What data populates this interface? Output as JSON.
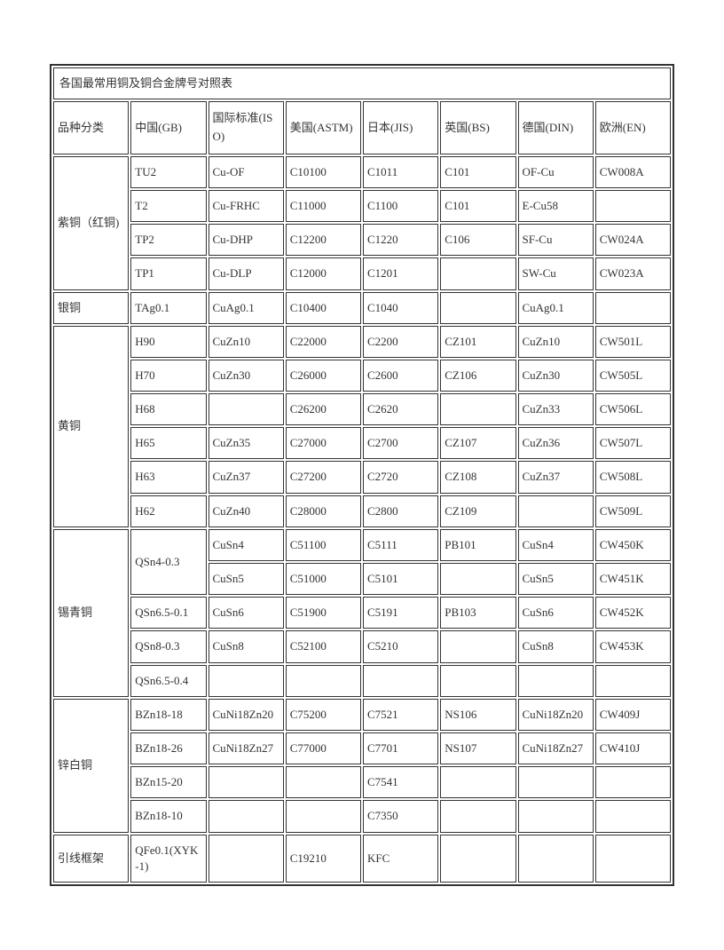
{
  "title": "各国最常用铜及铜合金牌号对照表",
  "headers": [
    "品种分类",
    "中国(GB)",
    "国际标准(ISO)",
    "美国(ASTM)",
    "日本(JIS)",
    "英国(BS)",
    "德国(DIN)",
    "欧洲(EN)"
  ],
  "sections": [
    {
      "category": "紫铜（红铜)",
      "rows": [
        [
          "TU2",
          "Cu-OF",
          "C10100",
          "C1011",
          "C101",
          "OF-Cu",
          "CW008A"
        ],
        [
          "T2",
          "Cu-FRHC",
          "C11000",
          "C1100",
          "C101",
          "E-Cu58",
          ""
        ],
        [
          "TP2",
          "Cu-DHP",
          "C12200",
          "C1220",
          "C106",
          "SF-Cu",
          "CW024A"
        ],
        [
          "TP1",
          "Cu-DLP",
          "C12000",
          "C1201",
          "",
          "SW-Cu",
          "CW023A"
        ]
      ]
    },
    {
      "category": "银铜",
      "rows": [
        [
          "TAg0.1",
          "CuAg0.1",
          "C10400",
          "C1040",
          "",
          "CuAg0.1",
          ""
        ]
      ]
    },
    {
      "category": "黄铜",
      "rows": [
        [
          "H90",
          "CuZn10",
          "C22000",
          "C2200",
          "CZ101",
          "CuZn10",
          "CW501L"
        ],
        [
          "H70",
          "CuZn30",
          "C26000",
          "C2600",
          "CZ106",
          "CuZn30",
          "CW505L"
        ],
        [
          "H68",
          "",
          "C26200",
          "C2620",
          "",
          "CuZn33",
          "CW506L"
        ],
        [
          "H65",
          "CuZn35",
          "C27000",
          "C2700",
          "CZ107",
          "CuZn36",
          "CW507L"
        ],
        [
          "H63",
          "CuZn37",
          "C27200",
          "C2720",
          "CZ108",
          "CuZn37",
          "CW508L"
        ],
        [
          "H62",
          "CuZn40",
          "C28000",
          "C2800",
          "CZ109",
          "",
          "CW509L"
        ]
      ]
    },
    {
      "category": "锡青铜",
      "rows": [
        [
          "QSn4-0.3",
          "CuSn4",
          "C51100",
          "C5111",
          "PB101",
          "CuSn4",
          "CW450K"
        ],
        [
          "__ROWSPAN__",
          "CuSn5",
          "C51000",
          "C5101",
          "",
          "CuSn5",
          "CW451K"
        ],
        [
          "QSn6.5-0.1",
          "CuSn6",
          "C51900",
          "C5191",
          "PB103",
          "CuSn6",
          "CW452K"
        ],
        [
          "QSn8-0.3",
          "CuSn8",
          "C52100",
          "C5210",
          "",
          "CuSn8",
          "CW453K"
        ],
        [
          "QSn6.5-0.4",
          "",
          "",
          "",
          "",
          "",
          ""
        ]
      ]
    },
    {
      "category": "锌白铜",
      "rows": [
        [
          "BZn18-18",
          "CuNi18Zn20",
          "C75200",
          "C7521",
          "NS106",
          "CuNi18Zn20",
          "CW409J"
        ],
        [
          "BZn18-26",
          "CuNi18Zn27",
          "C77000",
          "C7701",
          "NS107",
          "CuNi18Zn27",
          "CW410J"
        ],
        [
          "BZn15-20",
          "",
          "",
          "C7541",
          "",
          "",
          ""
        ],
        [
          "BZn18-10",
          "",
          "",
          "C7350",
          "",
          "",
          ""
        ]
      ]
    },
    {
      "category": "引线框架",
      "rows": [
        [
          "QFe0.1(XYK-1)",
          "",
          "C19210",
          "KFC",
          "",
          "",
          ""
        ]
      ]
    }
  ],
  "style": {
    "font_family": "SimSun",
    "font_size_pt": 10,
    "border_color": "#333333",
    "background_color": "#ffffff",
    "text_color": "#333333",
    "col_widths_pct": [
      8,
      14,
      15,
      11,
      10,
      10,
      15,
      10
    ]
  }
}
